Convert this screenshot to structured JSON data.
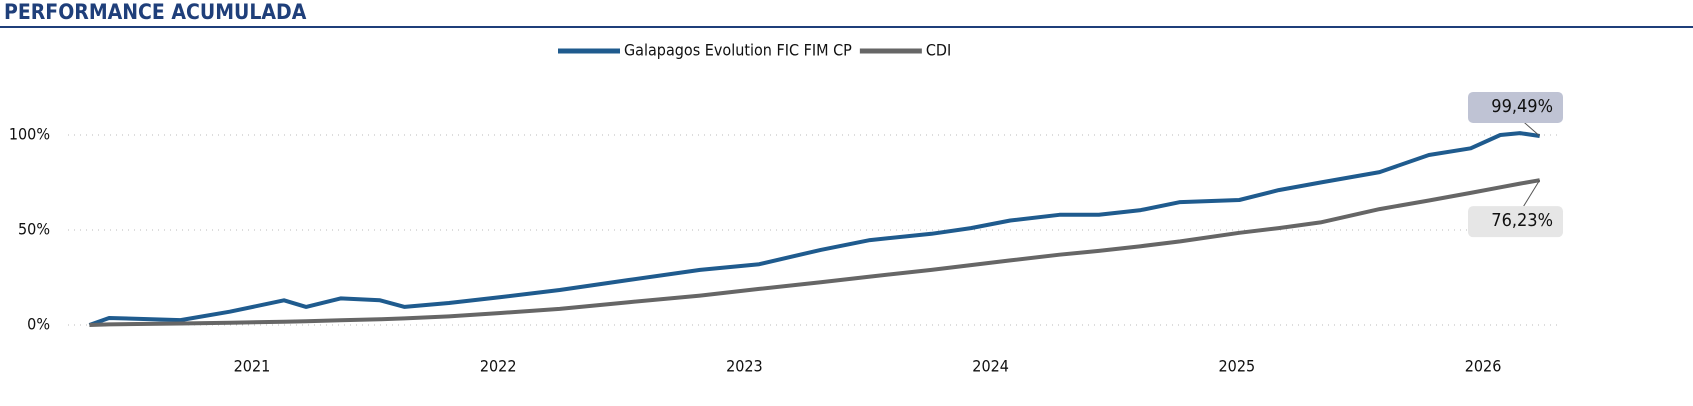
{
  "chart_data": {
    "type": "line",
    "title": "PERFORMANCE ACUMULADA",
    "x": [
      2020.34,
      2020.42,
      2020.71,
      2020.91,
      2021.13,
      2021.22,
      2021.36,
      2021.52,
      2021.62,
      2021.8,
      2022.01,
      2022.25,
      2022.53,
      2022.82,
      2023.06,
      2023.31,
      2023.51,
      2023.76,
      2023.92,
      2024.08,
      2024.28,
      2024.44,
      2024.61,
      2024.77,
      2025.01,
      2025.17,
      2025.34,
      2025.58,
      2025.78,
      2025.95,
      2026.07,
      2026.15,
      2026.23
    ],
    "series": [
      {
        "name": "Galapagos Evolution FIC FIM CP",
        "color": "#1f5b8e",
        "values": [
          0,
          3.7,
          2.6,
          7,
          13,
          9.5,
          14,
          13,
          9.5,
          11.6,
          14.7,
          18.4,
          23.7,
          29,
          32,
          39.5,
          44.7,
          48,
          51,
          55,
          58,
          58,
          60.5,
          64.7,
          65.8,
          71,
          75,
          80.5,
          89.5,
          93,
          100,
          101,
          99.49
        ],
        "value_labels": [
          null,
          null,
          null,
          null,
          null,
          null,
          null,
          null,
          null,
          null,
          null,
          null,
          null,
          null,
          null,
          null,
          null,
          null,
          null,
          null,
          null,
          null,
          null,
          null,
          null,
          null,
          null,
          null,
          null,
          null,
          null,
          null,
          "99,49%"
        ]
      },
      {
        "name": "CDI",
        "color": "#666666",
        "values": [
          0,
          0.3,
          0.8,
          1.2,
          1.7,
          2,
          2.5,
          3,
          3.5,
          4.5,
          6.3,
          8.5,
          12,
          15.5,
          19,
          22.5,
          25.5,
          29,
          31.5,
          34,
          37,
          39,
          41.5,
          44,
          48.5,
          51,
          54,
          61,
          65.5,
          69.5,
          72.5,
          74.4,
          76.23
        ],
        "value_labels": [
          null,
          null,
          null,
          null,
          null,
          null,
          null,
          null,
          null,
          null,
          null,
          null,
          null,
          null,
          null,
          null,
          null,
          null,
          null,
          null,
          null,
          null,
          null,
          null,
          null,
          null,
          null,
          null,
          null,
          null,
          null,
          null,
          "76,23%"
        ]
      }
    ],
    "xlim": [
      2020.3,
      2026.3
    ],
    "xticks": [
      2021,
      2022,
      2023,
      2024,
      2025,
      2026
    ],
    "ylim": [
      -10,
      120
    ],
    "yticks": [
      {
        "value": 0,
        "label": "0%"
      },
      {
        "value": 50,
        "label": "50%"
      },
      {
        "value": 100,
        "label": "100%"
      }
    ],
    "grid": true
  }
}
